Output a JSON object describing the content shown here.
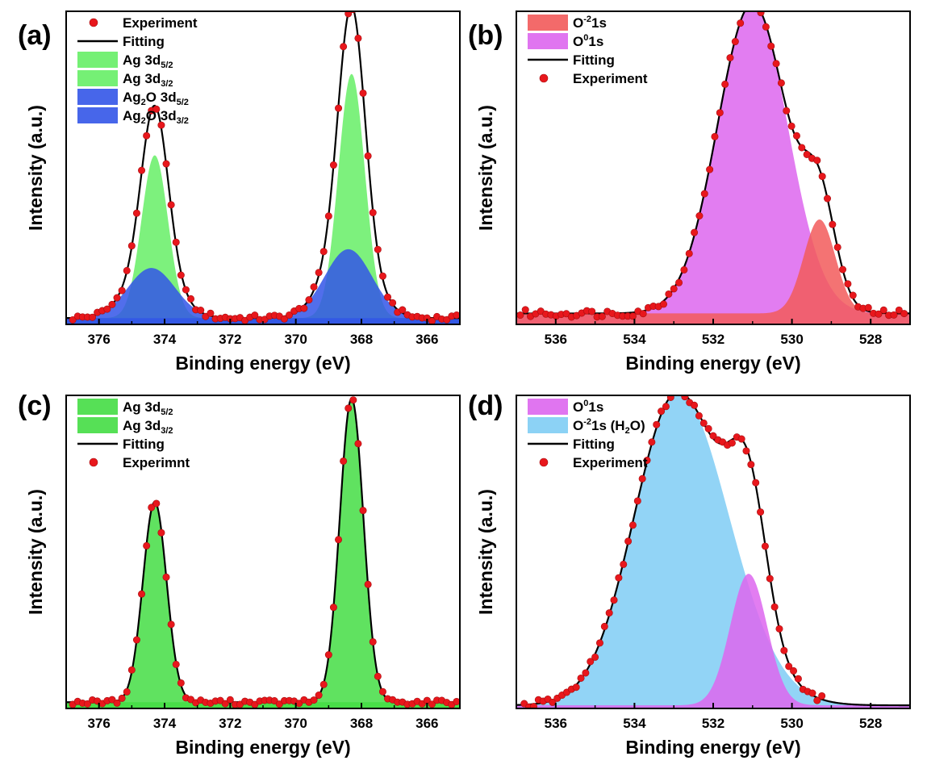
{
  "chart_data": [
    {
      "panel": "(a)",
      "type": "area",
      "xlabel": "Binding energy (eV)",
      "ylabel": "Intensity (a.u.)",
      "xlim": [
        377,
        365
      ],
      "ylim": [
        0,
        1.0
      ],
      "xticks": [
        376,
        374,
        372,
        370,
        368,
        366
      ],
      "legend": [
        {
          "kind": "marker",
          "parts": [
            {
              "t": "Experiment",
              "s": "n"
            }
          ],
          "color": "#e8171c"
        },
        {
          "kind": "line",
          "parts": [
            {
              "t": "Fitting",
              "s": "n"
            }
          ],
          "color": "#000000"
        },
        {
          "kind": "patch",
          "parts": [
            {
              "t": "Ag ",
              "s": "n"
            },
            {
              "t": "3d",
              "s": "n"
            },
            {
              "t": "5/2",
              "s": "sub"
            }
          ],
          "color": "#66ee66"
        },
        {
          "kind": "patch",
          "parts": [
            {
              "t": "Ag 3d",
              "s": "n"
            },
            {
              "t": "3/2",
              "s": "sub"
            }
          ],
          "color": "#66ee66"
        },
        {
          "kind": "patch",
          "parts": [
            {
              "t": "Ag",
              "s": "n"
            },
            {
              "t": "2",
              "s": "sub"
            },
            {
              "t": "O 3d",
              "s": "n"
            },
            {
              "t": "5/2",
              "s": "sub"
            }
          ],
          "color": "#3355e8"
        },
        {
          "kind": "patch",
          "parts": [
            {
              "t": "Ag",
              "s": "n"
            },
            {
              "t": "2",
              "s": "sub"
            },
            {
              "t": "O 3d",
              "s": "n"
            },
            {
              "t": "3/2",
              "s": "sub"
            }
          ],
          "color": "#3355e8"
        }
      ],
      "background": 0.02,
      "components": [
        {
          "name": "Ag 3d5/2",
          "color": "#66ee66",
          "center": 368.3,
          "height": 0.78,
          "fwhm": 0.95
        },
        {
          "name": "Ag 3d3/2",
          "color": "#66ee66",
          "center": 374.3,
          "height": 0.52,
          "fwhm": 0.95
        },
        {
          "name": "Ag2O 3d5/2",
          "color": "#3355e8",
          "center": 368.4,
          "height": 0.22,
          "fwhm": 1.7
        },
        {
          "name": "Ag2O 3d3/2",
          "color": "#3355e8",
          "center": 374.4,
          "height": 0.16,
          "fwhm": 1.7
        }
      ],
      "experiment": {
        "x_start": 376.8,
        "x_end": 365.1,
        "step": 0.15,
        "scatter": 0.01
      }
    },
    {
      "panel": "(b)",
      "type": "area",
      "xlabel": "Binding energy (eV)",
      "ylabel": "Intensity (a.u.)",
      "xlim": [
        537,
        527
      ],
      "ylim": [
        0,
        1.0
      ],
      "xticks": [
        536,
        534,
        532,
        530,
        528
      ],
      "legend": [
        {
          "kind": "patch",
          "parts": [
            {
              "t": "O",
              "s": "n"
            },
            {
              "t": "-2",
              "s": "sup"
            },
            {
              "t": "1s",
              "s": "n"
            }
          ],
          "color": "#f25a5a"
        },
        {
          "kind": "patch",
          "parts": [
            {
              "t": "O",
              "s": "n"
            },
            {
              "t": "0",
              "s": "sup"
            },
            {
              "t": "1s",
              "s": "n"
            }
          ],
          "color": "#dd66ee"
        },
        {
          "kind": "line",
          "parts": [
            {
              "t": "Fitting",
              "s": "n"
            }
          ],
          "color": "#000000"
        },
        {
          "kind": "marker",
          "parts": [
            {
              "t": "Experiment",
              "s": "n"
            }
          ],
          "color": "#e8171c"
        }
      ],
      "background": 0.035,
      "components": [
        {
          "name": "O0 1s",
          "color": "#dd66ee",
          "center": 531.0,
          "height": 0.99,
          "fwhm": 2.1
        },
        {
          "name": "O-2 1s",
          "color": "#f25a5a",
          "center": 529.3,
          "height": 0.3,
          "fwhm": 0.95
        }
      ],
      "experiment": {
        "x_start": 536.9,
        "x_end": 527.1,
        "step": 0.13,
        "scatter": 0.012
      }
    },
    {
      "panel": "(c)",
      "type": "area",
      "xlabel": "Binding energy (eV)",
      "ylabel": "Intensity (a.u.)",
      "xlim": [
        377,
        365
      ],
      "ylim": [
        0,
        1.0
      ],
      "xticks": [
        376,
        374,
        372,
        370,
        368,
        366
      ],
      "legend": [
        {
          "kind": "patch",
          "parts": [
            {
              "t": "Ag 3d",
              "s": "n"
            },
            {
              "t": "5/2",
              "s": "sub"
            }
          ],
          "color": "#44dd44"
        },
        {
          "kind": "patch",
          "parts": [
            {
              "t": "Ag 3d",
              "s": "n"
            },
            {
              "t": "3/2",
              "s": "sub"
            }
          ],
          "color": "#44dd44"
        },
        {
          "kind": "line",
          "parts": [
            {
              "t": "Fitting",
              "s": "n"
            }
          ],
          "color": "#000000"
        },
        {
          "kind": "marker",
          "parts": [
            {
              "t": "Experimnt",
              "s": "n"
            }
          ],
          "color": "#e8171c"
        }
      ],
      "background": 0.02,
      "components": [
        {
          "name": "Ag 3d5/2",
          "color": "#44dd44",
          "center": 368.3,
          "height": 0.97,
          "fwhm": 0.85
        },
        {
          "name": "Ag 3d3/2",
          "color": "#44dd44",
          "center": 374.3,
          "height": 0.64,
          "fwhm": 0.85
        }
      ],
      "experiment": {
        "x_start": 376.8,
        "x_end": 365.1,
        "step": 0.15,
        "scatter": 0.008
      }
    },
    {
      "panel": "(d)",
      "type": "area",
      "xlabel": "Binding energy (eV)",
      "ylabel": "Intensity (a.u.)",
      "xlim": [
        537,
        527
      ],
      "ylim": [
        0,
        1.0
      ],
      "xticks": [
        536,
        534,
        532,
        530,
        528
      ],
      "legend": [
        {
          "kind": "patch",
          "parts": [
            {
              "t": "O",
              "s": "n"
            },
            {
              "t": "0",
              "s": "sup"
            },
            {
              "t": "1s",
              "s": "n"
            }
          ],
          "color": "#dd66ee"
        },
        {
          "kind": "patch",
          "parts": [
            {
              "t": "O",
              "s": "n"
            },
            {
              "t": "-2",
              "s": "sup"
            },
            {
              "t": "1s (H",
              "s": "n"
            },
            {
              "t": "2",
              "s": "sub"
            },
            {
              "t": "O)",
              "s": "n"
            }
          ],
          "color": "#7fcdf4"
        },
        {
          "kind": "line",
          "parts": [
            {
              "t": "Fitting",
              "s": "n"
            }
          ],
          "color": "#000000"
        },
        {
          "kind": "marker",
          "parts": [
            {
              "t": "Experiment",
              "s": "n"
            }
          ],
          "color": "#e8171c"
        }
      ],
      "background": 0.01,
      "components": [
        {
          "name": "O-2 1s (H2O)",
          "color": "#7fcdf4",
          "center": 532.9,
          "height": 1.0,
          "fwhm": 2.6,
          "asym": 0.85
        },
        {
          "name": "O0 1s",
          "color": "#dd66ee",
          "center": 531.1,
          "height": 0.42,
          "fwhm": 1.1
        }
      ],
      "experiment": {
        "x_start": 536.8,
        "x_end": 529.2,
        "step": 0.12,
        "scatter": 0.012
      }
    }
  ]
}
